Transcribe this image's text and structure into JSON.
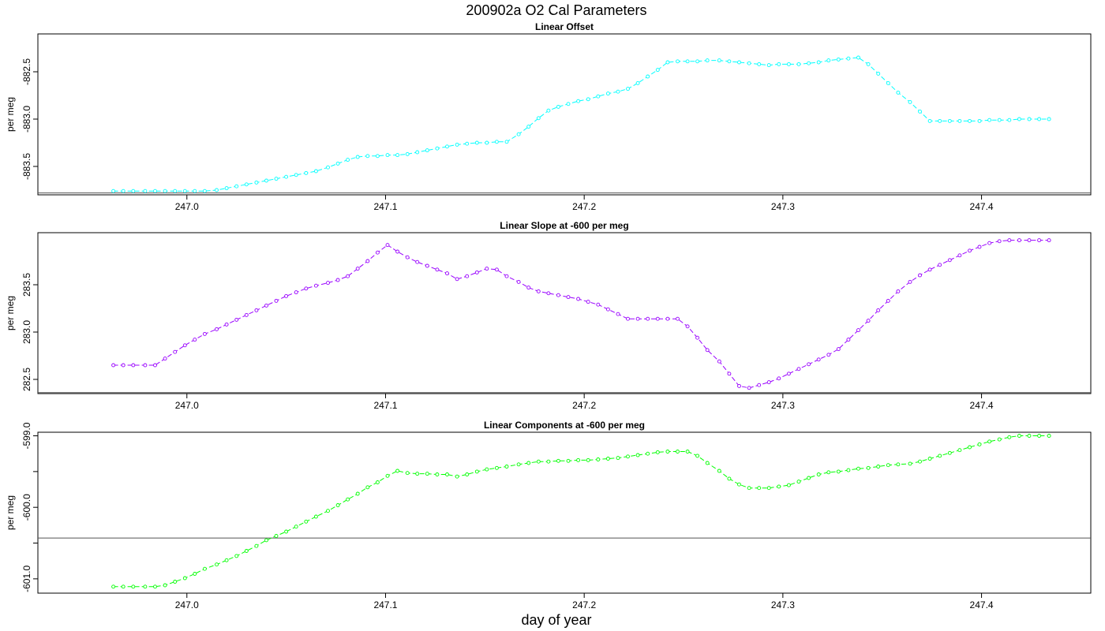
{
  "figure": {
    "title": "200902a   O2 Cal Parameters",
    "xlabel": "day of year"
  },
  "chart_data": [
    {
      "type": "line",
      "title": "Linear Offset",
      "xlabel": "day of year",
      "ylabel": "per meg",
      "color": "#00ffff",
      "xlim": [
        246.925,
        247.455
      ],
      "ylim": [
        -883.8,
        -882.1
      ],
      "xticks": [
        247.0,
        247.1,
        247.2,
        247.3,
        247.4
      ],
      "xtick_labels": [
        "247.0",
        "247.1",
        "247.2",
        "247.3",
        "247.4"
      ],
      "yticks": [
        -883.5,
        -883.0,
        -882.5
      ],
      "ytick_labels": [
        "-883.5",
        "-883.0",
        "-882.5"
      ],
      "hline": -883.78,
      "x": [
        246.963,
        246.968,
        246.973,
        246.979,
        246.984,
        246.989,
        246.994,
        246.999,
        247.004,
        247.009,
        247.015,
        247.02,
        247.025,
        247.03,
        247.035,
        247.04,
        247.045,
        247.05,
        247.055,
        247.06,
        247.065,
        247.071,
        247.076,
        247.081,
        247.086,
        247.091,
        247.096,
        247.101,
        247.106,
        247.111,
        247.116,
        247.121,
        247.126,
        247.131,
        247.136,
        247.141,
        247.146,
        247.151,
        247.156,
        247.161,
        247.167,
        247.172,
        247.177,
        247.182,
        247.187,
        247.192,
        247.197,
        247.202,
        247.207,
        247.212,
        247.217,
        247.222,
        247.227,
        247.232,
        247.237,
        247.242,
        247.247,
        247.252,
        247.257,
        247.262,
        247.268,
        247.273,
        247.278,
        247.283,
        247.288,
        247.293,
        247.298,
        247.303,
        247.308,
        247.313,
        247.318,
        247.323,
        247.328,
        247.333,
        247.338,
        247.343,
        247.348,
        247.353,
        247.358,
        247.364,
        247.369,
        247.374,
        247.379,
        247.384,
        247.389,
        247.394,
        247.399,
        247.404,
        247.409,
        247.414,
        247.419,
        247.424,
        247.429,
        247.434
      ],
      "y": [
        -883.76,
        -883.76,
        -883.76,
        -883.76,
        -883.76,
        -883.76,
        -883.76,
        -883.76,
        -883.76,
        -883.76,
        -883.75,
        -883.73,
        -883.71,
        -883.69,
        -883.67,
        -883.65,
        -883.63,
        -883.61,
        -883.59,
        -883.57,
        -883.55,
        -883.51,
        -883.47,
        -883.43,
        -883.4,
        -883.39,
        -883.39,
        -883.38,
        -883.38,
        -883.37,
        -883.35,
        -883.33,
        -883.31,
        -883.29,
        -883.27,
        -883.26,
        -883.25,
        -883.25,
        -883.24,
        -883.24,
        -883.16,
        -883.08,
        -882.99,
        -882.91,
        -882.87,
        -882.84,
        -882.81,
        -882.79,
        -882.76,
        -882.73,
        -882.71,
        -882.68,
        -882.62,
        -882.55,
        -882.48,
        -882.4,
        -882.39,
        -882.39,
        -882.39,
        -882.38,
        -882.38,
        -882.39,
        -882.4,
        -882.41,
        -882.42,
        -882.43,
        -882.42,
        -882.42,
        -882.42,
        -882.41,
        -882.4,
        -882.38,
        -882.37,
        -882.36,
        -882.35,
        -882.42,
        -882.52,
        -882.62,
        -882.72,
        -882.82,
        -882.92,
        -883.02,
        -883.02,
        -883.02,
        -883.02,
        -883.02,
        -883.02,
        -883.01,
        -883.01,
        -883.01,
        -883.0,
        -883.0,
        -883.0,
        -883.0
      ]
    },
    {
      "type": "line",
      "title": "Linear Slope at -600 per meg",
      "xlabel": "day of year",
      "ylabel": "per meg",
      "color": "#9900ff",
      "xlim": [
        246.925,
        247.455
      ],
      "ylim": [
        282.35,
        284.05
      ],
      "xticks": [
        247.0,
        247.1,
        247.2,
        247.3,
        247.4
      ],
      "xtick_labels": [
        "247.0",
        "247.1",
        "247.2",
        "247.3",
        "247.4"
      ],
      "yticks": [
        282.5,
        283.0,
        283.5
      ],
      "ytick_labels": [
        "282.5",
        "283.0",
        "283.5"
      ],
      "hline": 282.36,
      "x": [
        246.963,
        246.968,
        246.973,
        246.979,
        246.984,
        246.989,
        246.994,
        246.999,
        247.004,
        247.009,
        247.015,
        247.02,
        247.025,
        247.03,
        247.035,
        247.04,
        247.045,
        247.05,
        247.055,
        247.06,
        247.065,
        247.071,
        247.076,
        247.081,
        247.086,
        247.091,
        247.096,
        247.101,
        247.106,
        247.111,
        247.116,
        247.121,
        247.126,
        247.131,
        247.136,
        247.141,
        247.146,
        247.151,
        247.156,
        247.161,
        247.167,
        247.172,
        247.177,
        247.182,
        247.187,
        247.192,
        247.197,
        247.202,
        247.207,
        247.212,
        247.217,
        247.222,
        247.227,
        247.232,
        247.237,
        247.242,
        247.247,
        247.252,
        247.257,
        247.262,
        247.268,
        247.273,
        247.278,
        247.283,
        247.288,
        247.293,
        247.298,
        247.303,
        247.308,
        247.313,
        247.318,
        247.323,
        247.328,
        247.333,
        247.338,
        247.343,
        247.348,
        247.353,
        247.358,
        247.364,
        247.369,
        247.374,
        247.379,
        247.384,
        247.389,
        247.394,
        247.399,
        247.404,
        247.409,
        247.414,
        247.419,
        247.424,
        247.429,
        247.434
      ],
      "y": [
        282.65,
        282.65,
        282.65,
        282.65,
        282.65,
        282.72,
        282.79,
        282.86,
        282.92,
        282.98,
        283.03,
        283.08,
        283.13,
        283.18,
        283.23,
        283.28,
        283.33,
        283.38,
        283.42,
        283.46,
        283.49,
        283.52,
        283.55,
        283.59,
        283.67,
        283.75,
        283.84,
        283.92,
        283.85,
        283.79,
        283.74,
        283.7,
        283.66,
        283.62,
        283.56,
        283.59,
        283.63,
        283.67,
        283.66,
        283.59,
        283.53,
        283.47,
        283.43,
        283.41,
        283.39,
        283.37,
        283.35,
        283.32,
        283.29,
        283.24,
        283.19,
        283.14,
        283.14,
        283.14,
        283.14,
        283.14,
        283.14,
        283.06,
        282.94,
        282.81,
        282.69,
        282.56,
        282.43,
        282.41,
        282.44,
        282.47,
        282.51,
        282.56,
        282.61,
        282.66,
        282.71,
        282.76,
        282.82,
        282.92,
        283.02,
        283.12,
        283.23,
        283.33,
        283.43,
        283.53,
        283.6,
        283.66,
        283.71,
        283.76,
        283.81,
        283.86,
        283.9,
        283.94,
        283.96,
        283.97,
        283.97,
        283.97,
        283.97,
        283.97
      ]
    },
    {
      "type": "line",
      "title": "Linear Components at -600 per meg",
      "xlabel": "day of year",
      "ylabel": "per meg",
      "color": "#00ff00",
      "xlim": [
        246.925,
        247.455
      ],
      "ylim": [
        -601.2,
        -598.95
      ],
      "xticks": [
        247.0,
        247.1,
        247.2,
        247.3,
        247.4
      ],
      "xtick_labels": [
        "247.0",
        "247.1",
        "247.2",
        "247.3",
        "247.4"
      ],
      "yticks": [
        -601.0,
        -600.5,
        -600.0,
        -599.5,
        -599.0
      ],
      "ytick_labels": [
        "-601.0",
        "",
        "-600.0",
        "",
        "-599.0"
      ],
      "hline": -600.43,
      "x": [
        246.963,
        246.968,
        246.973,
        246.979,
        246.984,
        246.989,
        246.994,
        246.999,
        247.004,
        247.009,
        247.015,
        247.02,
        247.025,
        247.03,
        247.035,
        247.04,
        247.045,
        247.05,
        247.055,
        247.06,
        247.065,
        247.071,
        247.076,
        247.081,
        247.086,
        247.091,
        247.096,
        247.101,
        247.106,
        247.111,
        247.116,
        247.121,
        247.126,
        247.131,
        247.136,
        247.141,
        247.146,
        247.151,
        247.156,
        247.161,
        247.167,
        247.172,
        247.177,
        247.182,
        247.187,
        247.192,
        247.197,
        247.202,
        247.207,
        247.212,
        247.217,
        247.222,
        247.227,
        247.232,
        247.237,
        247.242,
        247.247,
        247.252,
        247.257,
        247.262,
        247.268,
        247.273,
        247.278,
        247.283,
        247.288,
        247.293,
        247.298,
        247.303,
        247.308,
        247.313,
        247.318,
        247.323,
        247.328,
        247.333,
        247.338,
        247.343,
        247.348,
        247.353,
        247.358,
        247.364,
        247.369,
        247.374,
        247.379,
        247.384,
        247.389,
        247.394,
        247.399,
        247.404,
        247.409,
        247.414,
        247.419,
        247.424,
        247.429,
        247.434
      ],
      "y": [
        -601.11,
        -601.11,
        -601.11,
        -601.11,
        -601.11,
        -601.09,
        -601.04,
        -600.99,
        -600.93,
        -600.86,
        -600.8,
        -600.74,
        -600.68,
        -600.61,
        -600.54,
        -600.46,
        -600.4,
        -600.34,
        -600.27,
        -600.2,
        -600.13,
        -600.05,
        -599.97,
        -599.89,
        -599.81,
        -599.72,
        -599.65,
        -599.56,
        -599.49,
        -599.52,
        -599.53,
        -599.53,
        -599.54,
        -599.54,
        -599.57,
        -599.54,
        -599.5,
        -599.47,
        -599.45,
        -599.43,
        -599.4,
        -599.38,
        -599.36,
        -599.36,
        -599.35,
        -599.35,
        -599.34,
        -599.34,
        -599.33,
        -599.32,
        -599.31,
        -599.29,
        -599.27,
        -599.25,
        -599.23,
        -599.22,
        -599.22,
        -599.22,
        -599.28,
        -599.38,
        -599.49,
        -599.6,
        -599.68,
        -599.73,
        -599.73,
        -599.73,
        -599.71,
        -599.69,
        -599.64,
        -599.59,
        -599.54,
        -599.51,
        -599.5,
        -599.48,
        -599.46,
        -599.45,
        -599.43,
        -599.41,
        -599.4,
        -599.39,
        -599.36,
        -599.32,
        -599.28,
        -599.24,
        -599.2,
        -599.16,
        -599.12,
        -599.08,
        -599.05,
        -599.02,
        -599.0,
        -599.0,
        -599.0,
        -599.0
      ]
    }
  ]
}
